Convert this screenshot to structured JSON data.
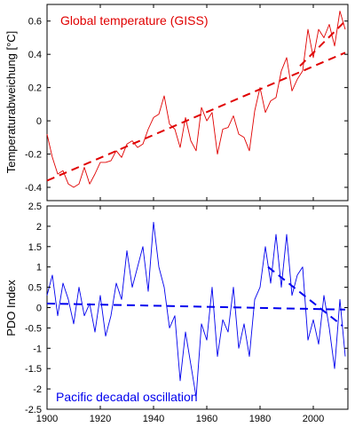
{
  "chart_data": [
    {
      "type": "line",
      "title": "Global temperature (GISS)",
      "xlabel": "",
      "ylabel": "Temperaturabweichung [°C]",
      "xlim": [
        1900,
        2013
      ],
      "ylim": [
        -0.48,
        0.7
      ],
      "x_ticks": [
        "1900",
        "1920",
        "1940",
        "1960",
        "1980",
        "2000"
      ],
      "y_ticks": [
        "-0.4",
        "-0.2",
        "0",
        "0.2",
        "0.4",
        "0.6"
      ],
      "grid": false,
      "color": "#e00000",
      "series": [
        {
          "style": "solid",
          "x": [
            1900,
            1902,
            1904,
            1906,
            1908,
            1910,
            1912,
            1914,
            1916,
            1918,
            1920,
            1922,
            1924,
            1926,
            1928,
            1930,
            1932,
            1934,
            1936,
            1938,
            1940,
            1942,
            1944,
            1946,
            1948,
            1950,
            1952,
            1954,
            1956,
            1958,
            1960,
            1962,
            1964,
            1966,
            1968,
            1970,
            1972,
            1974,
            1976,
            1978,
            1980,
            1982,
            1984,
            1986,
            1988,
            1990,
            1992,
            1994,
            1996,
            1998,
            2000,
            2002,
            2004,
            2006,
            2008,
            2010,
            2012
          ],
          "y": [
            -0.08,
            -0.22,
            -0.32,
            -0.3,
            -0.38,
            -0.4,
            -0.38,
            -0.28,
            -0.38,
            -0.32,
            -0.25,
            -0.25,
            -0.24,
            -0.18,
            -0.22,
            -0.14,
            -0.12,
            -0.16,
            -0.14,
            -0.05,
            0.02,
            0.04,
            0.15,
            -0.02,
            -0.05,
            -0.16,
            0.02,
            -0.12,
            -0.18,
            0.08,
            0.0,
            0.05,
            -0.2,
            -0.05,
            -0.04,
            0.03,
            -0.08,
            -0.1,
            -0.18,
            0.06,
            0.2,
            0.05,
            0.12,
            0.14,
            0.3,
            0.38,
            0.18,
            0.25,
            0.3,
            0.55,
            0.38,
            0.55,
            0.5,
            0.58,
            0.45,
            0.66,
            0.55
          ]
        },
        {
          "style": "dashed",
          "x": [
            1900,
            2012
          ],
          "y": [
            -0.36,
            0.41
          ]
        },
        {
          "style": "dashed",
          "x": [
            1995,
            2012
          ],
          "y": [
            0.33,
            0.6
          ]
        }
      ]
    },
    {
      "type": "line",
      "title": "Pacific decadal oscillation",
      "xlabel": "",
      "ylabel": "PDO Index",
      "xlim": [
        1900,
        2013
      ],
      "ylim": [
        -2.5,
        2.5
      ],
      "x_ticks": [
        "1900",
        "1920",
        "1940",
        "1960",
        "1980",
        "2000"
      ],
      "y_ticks": [
        "-2.5",
        "-2",
        "-1.5",
        "-1",
        "-0.5",
        "0",
        "0.5",
        "1",
        "1.5",
        "2",
        "2.5"
      ],
      "grid": false,
      "color": "#0000ee",
      "series": [
        {
          "style": "solid",
          "x": [
            1900,
            1902,
            1904,
            1906,
            1908,
            1910,
            1912,
            1914,
            1916,
            1918,
            1920,
            1922,
            1924,
            1926,
            1928,
            1930,
            1932,
            1934,
            1936,
            1938,
            1940,
            1942,
            1944,
            1946,
            1948,
            1950,
            1952,
            1954,
            1956,
            1958,
            1960,
            1962,
            1964,
            1966,
            1968,
            1970,
            1972,
            1974,
            1976,
            1978,
            1980,
            1982,
            1984,
            1986,
            1988,
            1990,
            1992,
            1994,
            1996,
            1998,
            2000,
            2002,
            2004,
            2006,
            2008,
            2010,
            2012
          ],
          "y": [
            0.3,
            0.8,
            -0.2,
            0.6,
            0.2,
            -0.4,
            0.5,
            -0.2,
            0.1,
            -0.6,
            0.3,
            -0.7,
            -0.2,
            0.6,
            0.2,
            1.4,
            0.5,
            1.0,
            1.5,
            0.4,
            2.1,
            1.0,
            0.5,
            -0.5,
            -0.2,
            -1.8,
            -0.6,
            -1.4,
            -2.2,
            -0.4,
            -0.8,
            0.5,
            -1.2,
            -0.3,
            -0.6,
            0.5,
            -1.0,
            -0.4,
            -1.2,
            0.2,
            0.5,
            1.5,
            0.6,
            1.8,
            0.5,
            1.8,
            0.3,
            0.8,
            1.0,
            -0.8,
            -0.3,
            -0.9,
            0.3,
            -0.5,
            -1.5,
            0.2,
            -1.2
          ]
        },
        {
          "style": "dashed",
          "x": [
            1900,
            2012
          ],
          "y": [
            0.1,
            -0.05
          ]
        },
        {
          "style": "dashed",
          "x": [
            1983,
            2011
          ],
          "y": [
            1.0,
            -0.45
          ]
        }
      ]
    }
  ]
}
